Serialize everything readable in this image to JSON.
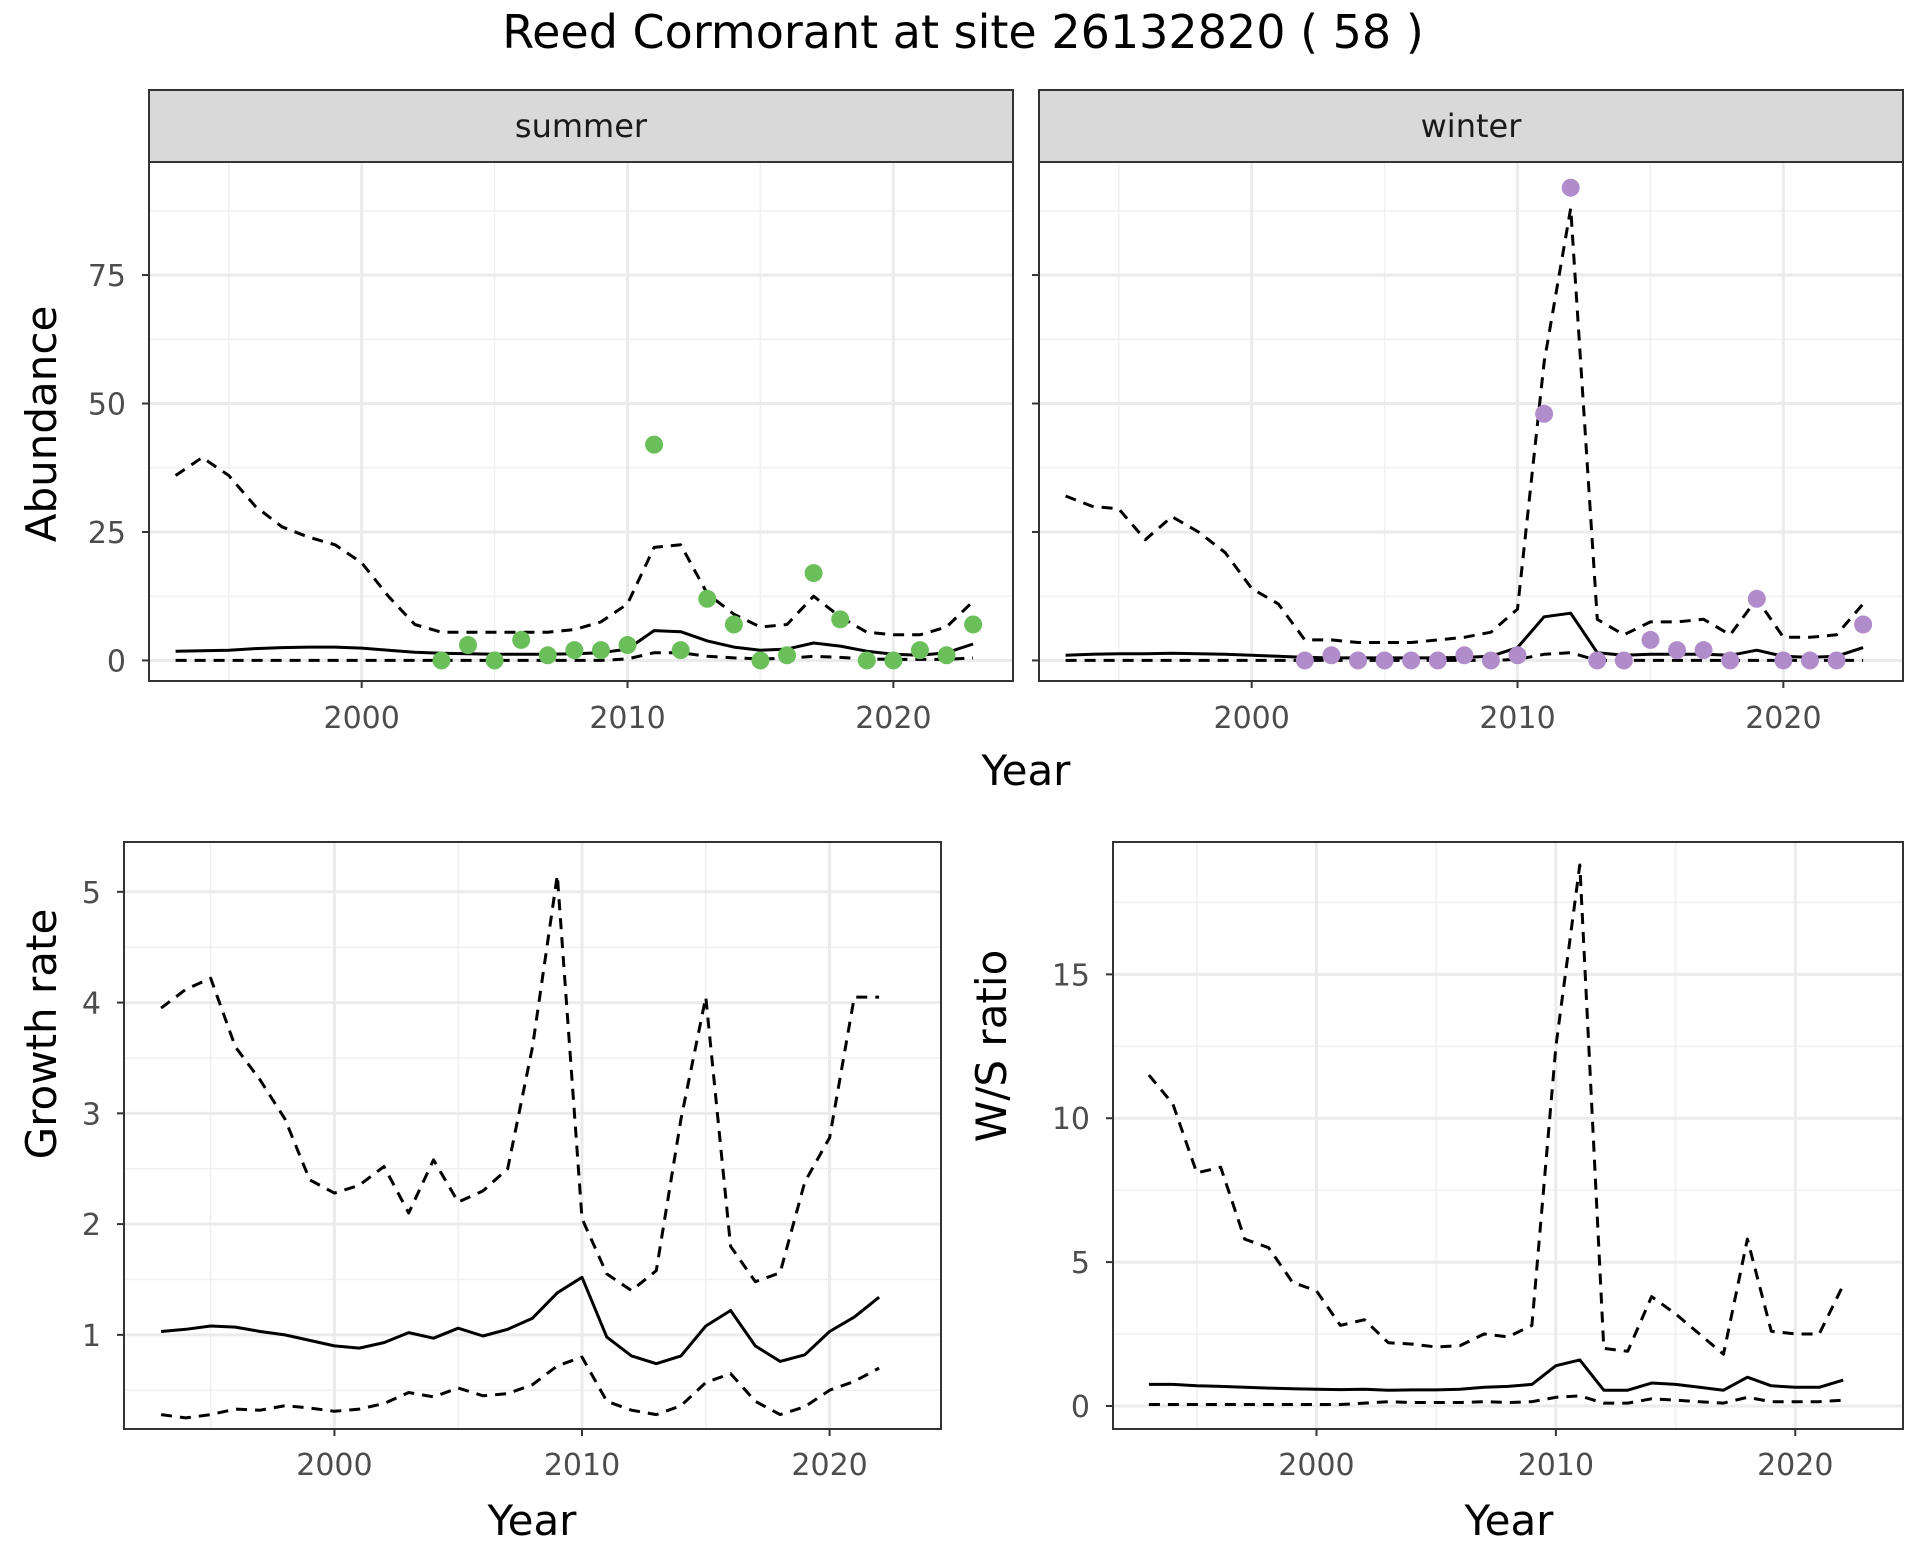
{
  "figure": {
    "title": "Reed Cormorant at site 26132820 ( 58 )"
  },
  "chart_data": [
    {
      "type": "line",
      "panel": "summer",
      "strip_label": "summer",
      "xlabel": "",
      "ylabel": "Abundance",
      "shared_xlabel": "Year",
      "xlim": [
        1992,
        2024.5
      ],
      "ylim": [
        -4,
        97
      ],
      "xticks": [
        2000,
        2010,
        2020
      ],
      "yticks": [
        0,
        25,
        50,
        75
      ],
      "point_color": "#6abf5a",
      "x": [
        1993,
        1994,
        1995,
        1996,
        1997,
        1998,
        1999,
        2000,
        2001,
        2002,
        2003,
        2004,
        2005,
        2006,
        2007,
        2008,
        2009,
        2010,
        2011,
        2012,
        2013,
        2014,
        2015,
        2016,
        2017,
        2018,
        2019,
        2020,
        2021,
        2022,
        2023
      ],
      "series": [
        {
          "style": "solid",
          "values": [
            1.8,
            1.9,
            2.0,
            2.3,
            2.5,
            2.6,
            2.6,
            2.4,
            2.0,
            1.6,
            1.4,
            1.3,
            1.2,
            1.2,
            1.2,
            1.3,
            1.5,
            2.2,
            5.8,
            5.6,
            3.8,
            2.6,
            2.0,
            2.2,
            3.4,
            2.8,
            1.8,
            1.2,
            1.0,
            1.5,
            3.2
          ]
        },
        {
          "style": "dashed",
          "values": [
            36,
            39.5,
            36,
            30,
            26,
            24,
            22.5,
            19,
            12.5,
            7,
            5.5,
            5.5,
            5.5,
            5.5,
            5.5,
            6,
            7.5,
            11,
            22,
            22.5,
            13,
            9,
            6.5,
            7,
            12.5,
            8.5,
            5.5,
            5,
            5,
            6.5,
            11.5
          ]
        },
        {
          "style": "dashed",
          "values": [
            0,
            0,
            0,
            0,
            0,
            0,
            0,
            0,
            0,
            0,
            0,
            0,
            0,
            0,
            0,
            0,
            0,
            0.3,
            1.5,
            1.5,
            0.8,
            0.5,
            0.3,
            0.4,
            0.8,
            0.6,
            0.3,
            0.2,
            0.2,
            0.2,
            0.5
          ]
        }
      ],
      "points": [
        {
          "x": 2003,
          "y": 0
        },
        {
          "x": 2004,
          "y": 3
        },
        {
          "x": 2005,
          "y": 0
        },
        {
          "x": 2006,
          "y": 4
        },
        {
          "x": 2007,
          "y": 1
        },
        {
          "x": 2008,
          "y": 2
        },
        {
          "x": 2009,
          "y": 2
        },
        {
          "x": 2010,
          "y": 3
        },
        {
          "x": 2011,
          "y": 42
        },
        {
          "x": 2012,
          "y": 2
        },
        {
          "x": 2013,
          "y": 12
        },
        {
          "x": 2014,
          "y": 7
        },
        {
          "x": 2015,
          "y": 0
        },
        {
          "x": 2016,
          "y": 1
        },
        {
          "x": 2017,
          "y": 17
        },
        {
          "x": 2018,
          "y": 8
        },
        {
          "x": 2019,
          "y": 0
        },
        {
          "x": 2020,
          "y": 0
        },
        {
          "x": 2021,
          "y": 2
        },
        {
          "x": 2022,
          "y": 1
        },
        {
          "x": 2023,
          "y": 7
        }
      ]
    },
    {
      "type": "line",
      "panel": "winter",
      "strip_label": "winter",
      "xlabel": "",
      "ylabel": "",
      "xlim": [
        1992,
        2024.5
      ],
      "ylim": [
        -4,
        97
      ],
      "xticks": [
        2000,
        2010,
        2020
      ],
      "yticks": [
        0,
        25,
        50,
        75
      ],
      "point_color": "#b08cca",
      "x": [
        1993,
        1994,
        1995,
        1996,
        1997,
        1998,
        1999,
        2000,
        2001,
        2002,
        2003,
        2004,
        2005,
        2006,
        2007,
        2008,
        2009,
        2010,
        2011,
        2012,
        2013,
        2014,
        2015,
        2016,
        2017,
        2018,
        2019,
        2020,
        2021,
        2022,
        2023
      ],
      "series": [
        {
          "style": "solid",
          "values": [
            1.0,
            1.2,
            1.3,
            1.3,
            1.4,
            1.3,
            1.2,
            1.0,
            0.8,
            0.6,
            0.5,
            0.5,
            0.5,
            0.5,
            0.5,
            0.6,
            0.8,
            2.5,
            8.5,
            9.2,
            1.5,
            1.0,
            1.2,
            1.2,
            1.2,
            1.0,
            2.0,
            0.8,
            0.6,
            0.8,
            2.5
          ]
        },
        {
          "style": "dashed",
          "values": [
            32,
            30,
            29.5,
            23.5,
            28,
            25,
            21,
            14,
            11,
            4,
            4,
            3.5,
            3.5,
            3.5,
            4,
            4.5,
            5.5,
            10,
            58,
            88,
            8,
            5,
            7.5,
            7.5,
            8,
            5,
            12,
            4.5,
            4.5,
            5,
            11
          ]
        },
        {
          "style": "dashed",
          "values": [
            0,
            0,
            0,
            0,
            0,
            0,
            0,
            0,
            0,
            0,
            0,
            0,
            0,
            0,
            0,
            0,
            0,
            0.2,
            1.2,
            1.5,
            0,
            0,
            0,
            0,
            0,
            0,
            0,
            0,
            0,
            0,
            0
          ]
        }
      ],
      "points": [
        {
          "x": 2002,
          "y": 0
        },
        {
          "x": 2003,
          "y": 1
        },
        {
          "x": 2004,
          "y": 0
        },
        {
          "x": 2005,
          "y": 0
        },
        {
          "x": 2006,
          "y": 0
        },
        {
          "x": 2007,
          "y": 0
        },
        {
          "x": 2008,
          "y": 1
        },
        {
          "x": 2009,
          "y": 0
        },
        {
          "x": 2010,
          "y": 1
        },
        {
          "x": 2011,
          "y": 48
        },
        {
          "x": 2012,
          "y": 92
        },
        {
          "x": 2013,
          "y": 0
        },
        {
          "x": 2014,
          "y": 0
        },
        {
          "x": 2015,
          "y": 4
        },
        {
          "x": 2016,
          "y": 2
        },
        {
          "x": 2017,
          "y": 2
        },
        {
          "x": 2018,
          "y": 0
        },
        {
          "x": 2019,
          "y": 12
        },
        {
          "x": 2020,
          "y": 0
        },
        {
          "x": 2021,
          "y": 0
        },
        {
          "x": 2022,
          "y": 0
        },
        {
          "x": 2023,
          "y": 7
        }
      ]
    },
    {
      "type": "line",
      "panel": "growth",
      "xlabel": "Year",
      "ylabel": "Growth rate",
      "xlim": [
        1991.5,
        2024.5
      ],
      "ylim": [
        0.15,
        5.45
      ],
      "xticks": [
        2000,
        2010,
        2020
      ],
      "yticks": [
        1,
        2,
        3,
        4,
        5
      ],
      "x": [
        1993,
        1994,
        1995,
        1996,
        1997,
        1998,
        1999,
        2000,
        2001,
        2002,
        2003,
        2004,
        2005,
        2006,
        2007,
        2008,
        2009,
        2010,
        2011,
        2012,
        2013,
        2014,
        2015,
        2016,
        2017,
        2018,
        2019,
        2020,
        2021,
        2022
      ],
      "series": [
        {
          "style": "solid",
          "values": [
            1.03,
            1.05,
            1.08,
            1.07,
            1.03,
            1.0,
            0.95,
            0.9,
            0.88,
            0.93,
            1.02,
            0.97,
            1.06,
            0.99,
            1.05,
            1.15,
            1.38,
            1.52,
            0.98,
            0.81,
            0.74,
            0.81,
            1.08,
            1.22,
            0.9,
            0.76,
            0.82,
            1.03,
            1.16,
            1.34
          ]
        },
        {
          "style": "dashed",
          "values": [
            3.95,
            4.12,
            4.22,
            3.6,
            3.3,
            2.95,
            2.4,
            2.28,
            2.35,
            2.52,
            2.1,
            2.58,
            2.2,
            2.3,
            2.5,
            3.6,
            5.15,
            2.05,
            1.55,
            1.4,
            1.58,
            2.95,
            4.05,
            1.8,
            1.48,
            1.56,
            2.38,
            2.78,
            4.05,
            4.05
          ]
        },
        {
          "style": "dashed",
          "values": [
            0.28,
            0.25,
            0.28,
            0.33,
            0.32,
            0.36,
            0.34,
            0.31,
            0.33,
            0.38,
            0.48,
            0.44,
            0.52,
            0.45,
            0.47,
            0.55,
            0.72,
            0.8,
            0.4,
            0.32,
            0.28,
            0.36,
            0.57,
            0.65,
            0.4,
            0.28,
            0.35,
            0.5,
            0.58,
            0.7
          ]
        }
      ]
    },
    {
      "type": "line",
      "panel": "ws_ratio",
      "xlabel": "Year",
      "ylabel": "W/S ratio",
      "xlim": [
        1991.5,
        2024.5
      ],
      "ylim": [
        -0.8,
        19.6
      ],
      "xticks": [
        2000,
        2010,
        2020
      ],
      "yticks": [
        0,
        5,
        10,
        15
      ],
      "x": [
        1993,
        1994,
        1995,
        1996,
        1997,
        1998,
        1999,
        2000,
        2001,
        2002,
        2003,
        2004,
        2005,
        2006,
        2007,
        2008,
        2009,
        2010,
        2011,
        2012,
        2013,
        2014,
        2015,
        2016,
        2017,
        2018,
        2019,
        2020,
        2021,
        2022
      ],
      "series": [
        {
          "style": "solid",
          "values": [
            0.75,
            0.75,
            0.7,
            0.68,
            0.65,
            0.62,
            0.6,
            0.58,
            0.57,
            0.58,
            0.55,
            0.56,
            0.56,
            0.58,
            0.65,
            0.68,
            0.75,
            1.4,
            1.6,
            0.55,
            0.55,
            0.8,
            0.75,
            0.65,
            0.55,
            1.0,
            0.7,
            0.65,
            0.65,
            0.9
          ]
        },
        {
          "style": "dashed",
          "values": [
            11.5,
            10.5,
            8.1,
            8.3,
            5.8,
            5.5,
            4.3,
            4.0,
            2.8,
            3.0,
            2.2,
            2.15,
            2.05,
            2.1,
            2.5,
            2.4,
            2.8,
            12.5,
            18.8,
            2.0,
            1.9,
            3.8,
            3.2,
            2.5,
            1.8,
            5.8,
            2.6,
            2.5,
            2.5,
            4.2
          ]
        },
        {
          "style": "dashed",
          "values": [
            0.05,
            0.05,
            0.05,
            0.05,
            0.05,
            0.05,
            0.05,
            0.05,
            0.05,
            0.1,
            0.15,
            0.12,
            0.12,
            0.12,
            0.15,
            0.12,
            0.15,
            0.3,
            0.35,
            0.1,
            0.1,
            0.25,
            0.2,
            0.15,
            0.1,
            0.3,
            0.15,
            0.15,
            0.15,
            0.2
          ]
        }
      ]
    }
  ]
}
